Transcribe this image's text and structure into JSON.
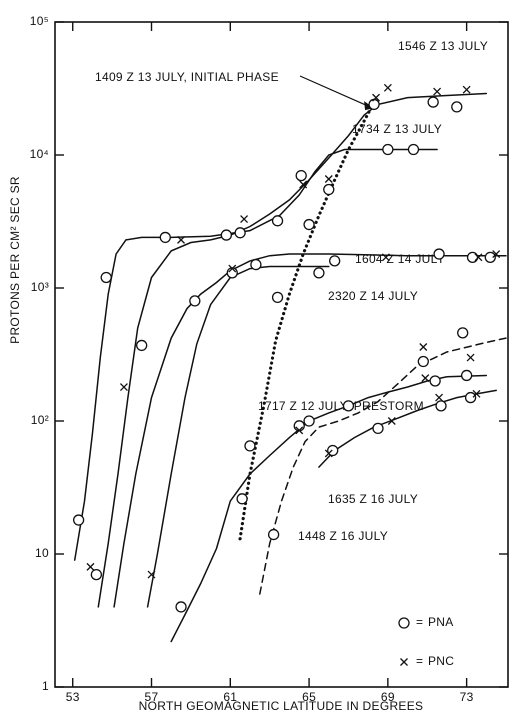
{
  "chart_data": {
    "type": "line",
    "yscale": "log",
    "xlim": [
      52.1,
      75.1
    ],
    "ylim": [
      1,
      100000
    ],
    "xticks": [
      53,
      57,
      61,
      65,
      69,
      73
    ],
    "yticks": [
      1,
      10,
      {
        "value": 100,
        "label": "10²"
      },
      {
        "value": 1000,
        "label": "10³"
      },
      {
        "value": 10000,
        "label": "10⁴"
      },
      {
        "value": 100000,
        "label": "10⁵"
      }
    ],
    "xlabel": "NORTH GEOMAGNETIC LATITUDE IN DEGREES",
    "ylabel": "PROTONS PER CM² SEC SR",
    "color": "#111111",
    "series": [
      {
        "name": "1546 Z 13 JULY",
        "style": "solid",
        "x": [
          54.3,
          54.8,
          55.3,
          55.8,
          56.3,
          57,
          58,
          59,
          60,
          61,
          62,
          63,
          64,
          65,
          66,
          67,
          67.8,
          68.5,
          70,
          72,
          74
        ],
        "values": [
          4,
          12,
          40,
          150,
          500,
          1200,
          1900,
          2200,
          2300,
          2500,
          2900,
          3600,
          4600,
          6500,
          9500,
          14000,
          20000,
          24000,
          27000,
          28000,
          29000
        ]
      },
      {
        "name": "1409 Z 13 JULY, INITIAL PHASE",
        "style": "dotted",
        "x": [
          61.5,
          62,
          62.7,
          63.3,
          64,
          64.7,
          65.5,
          66.3,
          67,
          67.7,
          68.3
        ],
        "values": [
          13,
          40,
          130,
          400,
          900,
          1800,
          3500,
          6500,
          11000,
          17000,
          25000
        ]
      },
      {
        "name": "1734 Z 13 JULY",
        "style": "solid",
        "x": [
          53.1,
          53.6,
          54.0,
          54.4,
          54.8,
          55.2,
          55.7,
          56.5,
          58,
          60,
          62,
          63.5,
          64.5,
          65.3,
          66,
          66.8,
          68,
          70,
          71.5
        ],
        "values": [
          9,
          25,
          80,
          300,
          900,
          1800,
          2300,
          2400,
          2400,
          2450,
          2700,
          3500,
          5000,
          7500,
          10000,
          11000,
          11000,
          11000,
          11000
        ]
      },
      {
        "name": "1604 Z 14 JULY",
        "style": "solid",
        "x": [
          55.1,
          55.6,
          56.2,
          57,
          58,
          58.8,
          59.5,
          60.3,
          61,
          62,
          63,
          64,
          66,
          70,
          75
        ],
        "values": [
          4,
          12,
          40,
          150,
          420,
          700,
          900,
          1100,
          1350,
          1600,
          1750,
          1800,
          1800,
          1750,
          1750
        ]
      },
      {
        "name": "2320 Z 14 JULY",
        "style": "solid",
        "x": [
          56.8,
          57.3,
          58,
          58.7,
          59.3,
          60,
          61,
          62,
          63,
          64,
          66
        ],
        "values": [
          4,
          10,
          40,
          150,
          380,
          750,
          1200,
          1400,
          1450,
          1450,
          1450
        ]
      },
      {
        "name": "1717 Z 12 JULY, PRESTORM",
        "style": "solid",
        "x": [
          58,
          58.7,
          59.5,
          60.3,
          61,
          62,
          63,
          64,
          65,
          66,
          67,
          68,
          69,
          70,
          71,
          72,
          74
        ],
        "values": [
          2.2,
          3.5,
          6,
          11,
          25,
          40,
          55,
          75,
          100,
          115,
          130,
          150,
          165,
          180,
          200,
          215,
          220
        ]
      },
      {
        "name": "1635 Z 16 JULY",
        "style": "solid",
        "x": [
          65.5,
          66.3,
          67.3,
          68.3,
          69.5,
          70.5,
          71.5,
          72.5,
          73.5,
          74.5
        ],
        "values": [
          45,
          60,
          75,
          90,
          105,
          120,
          135,
          150,
          160,
          170
        ]
      },
      {
        "name": "1448 Z 16 JULY",
        "style": "dashed",
        "x": [
          62.5,
          63,
          63.6,
          64.2,
          64.8,
          65.5,
          66.5,
          67.5,
          68.5,
          69.5,
          70.5,
          72,
          74,
          75
        ],
        "values": [
          5,
          12,
          25,
          45,
          70,
          90,
          100,
          115,
          140,
          190,
          260,
          330,
          390,
          420
        ]
      }
    ],
    "markers": [
      {
        "name": "PNA",
        "symbol": "circle",
        "x": [
          53.3,
          54.2,
          54.7,
          56.5,
          57.7,
          58.5,
          59.2,
          60.8,
          61.1,
          61.5,
          61.6,
          62,
          62.3,
          63.2,
          63.4,
          63.4,
          64.5,
          64.6,
          65,
          65,
          65.5,
          66,
          66.3,
          66.2,
          67,
          68.3,
          68.5,
          69,
          70.3,
          70.8,
          71.4,
          71.7,
          71.6,
          71.3,
          72.5,
          72.8,
          73,
          73.2,
          73.3,
          74.2
        ],
        "values": [
          18,
          7,
          1200,
          370,
          2400,
          4,
          800,
          2500,
          1300,
          2600,
          26,
          65,
          1500,
          14,
          850,
          3200,
          92,
          7000,
          100,
          3000,
          1300,
          5500,
          1600,
          60,
          130,
          24000,
          88,
          11000,
          11000,
          280,
          200,
          130,
          1800,
          25000,
          23000,
          460,
          220,
          150,
          1700,
          1700
        ]
      },
      {
        "name": "PNC",
        "symbol": "cross",
        "x": [
          53.9,
          55.6,
          57,
          58.5,
          61.1,
          61.7,
          64.5,
          64.7,
          66,
          66,
          68.4,
          69,
          68.9,
          69.2,
          70.8,
          70.9,
          71.5,
          71.6,
          73,
          73.2,
          73.6,
          73.5,
          74.5
        ],
        "values": [
          8,
          180,
          7,
          2300,
          1400,
          3300,
          85,
          6000,
          6600,
          57,
          27000,
          32000,
          1700,
          100,
          360,
          210,
          30000,
          150,
          31000,
          300,
          1700,
          160,
          1800
        ]
      }
    ],
    "legend_separator": "="
  }
}
